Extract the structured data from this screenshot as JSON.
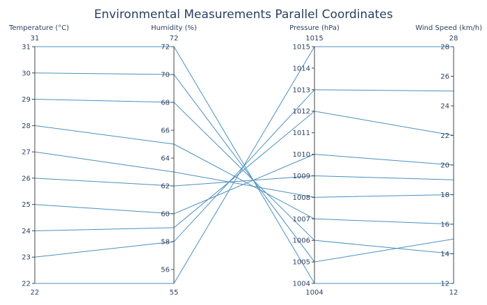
{
  "chart_data": {
    "type": "parallel_coordinates",
    "title": "Environmental Measurements Parallel Coordinates",
    "line_color": "#4a8fc0",
    "axes": [
      {
        "name": "Temperature (°C)",
        "range": [
          22,
          31
        ],
        "ticks": [
          22,
          23,
          24,
          25,
          26,
          27,
          28,
          29,
          30,
          31
        ],
        "range_labels": [
          "31",
          "22"
        ]
      },
      {
        "name": "Humidity (%)",
        "range": [
          55,
          72
        ],
        "ticks": [
          56,
          58,
          60,
          62,
          64,
          66,
          68,
          70,
          72
        ],
        "range_labels": [
          "72",
          "55"
        ]
      },
      {
        "name": "Pressure (hPa)",
        "range": [
          1004,
          1015
        ],
        "ticks": [
          1004,
          1005,
          1006,
          1007,
          1008,
          1009,
          1010,
          1011,
          1012,
          1013,
          1014,
          1015
        ],
        "range_labels": [
          "1015",
          "1004"
        ]
      },
      {
        "name": "Wind Speed (km/h)",
        "range": [
          12,
          28
        ],
        "ticks": [
          12,
          14,
          16,
          18,
          20,
          22,
          24,
          26,
          28
        ],
        "range_labels": [
          "28",
          "12"
        ]
      }
    ],
    "rows": [
      [
        31,
        72,
        1004,
        12
      ],
      [
        30,
        70,
        1005,
        15
      ],
      [
        29,
        68,
        1006,
        14
      ],
      [
        28,
        65,
        1007,
        16
      ],
      [
        27,
        63,
        1008,
        18
      ],
      [
        26,
        62,
        1009,
        19
      ],
      [
        25,
        60,
        1010,
        20
      ],
      [
        24,
        59,
        1012,
        22
      ],
      [
        23,
        58,
        1013,
        25
      ],
      [
        22,
        55,
        1015,
        28
      ]
    ]
  }
}
